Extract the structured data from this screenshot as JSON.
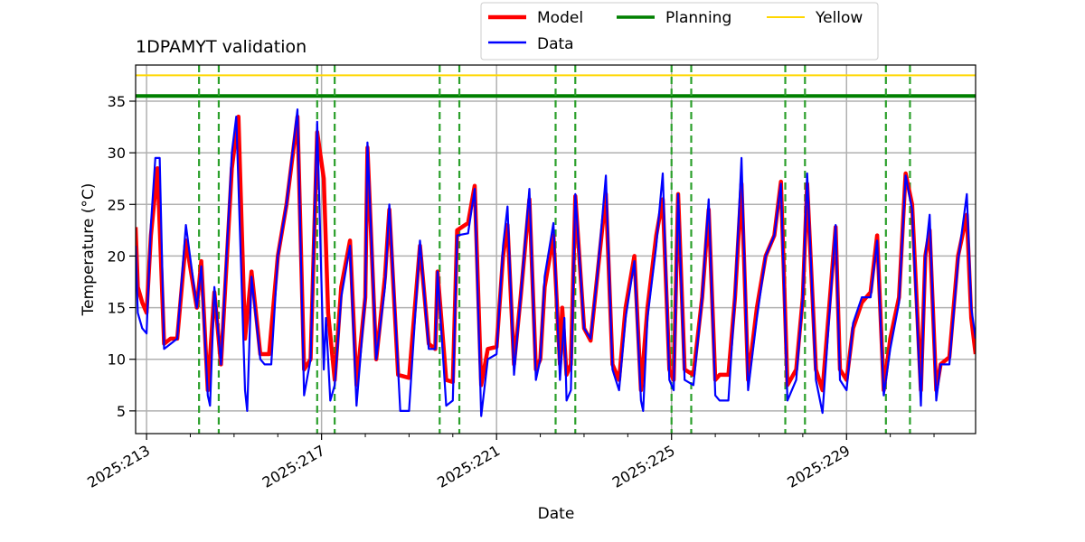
{
  "chart_data": {
    "type": "line",
    "title": "1DPAMYT validation",
    "xlabel": "Date",
    "ylabel": "Temperature ($^\\circ$C)",
    "ylabel_display": "Temperature (°C)",
    "xlim": [
      212.75,
      231.95
    ],
    "ylim": [
      2.8,
      38.5
    ],
    "x_ticks": [
      {
        "value": 213,
        "label": "2025:213"
      },
      {
        "value": 217,
        "label": "2025:217"
      },
      {
        "value": 221,
        "label": "2025:221"
      },
      {
        "value": 225,
        "label": "2025:225"
      },
      {
        "value": 229,
        "label": "2025:229"
      }
    ],
    "y_ticks": [
      5,
      10,
      15,
      20,
      25,
      30,
      35
    ],
    "grid": true,
    "legend_placement": "top-center",
    "legend": [
      {
        "label": "Model",
        "color": "#ff0000"
      },
      {
        "label": "Planning",
        "color": "#008000"
      },
      {
        "label": "Yellow",
        "color": "#ffd700"
      },
      {
        "label": "Data",
        "color": "#0000ff"
      }
    ],
    "planning_limit": 35.5,
    "yellow_limit": 37.5,
    "vertical_markers": [
      214.2,
      214.65,
      216.9,
      217.3,
      219.7,
      220.15,
      222.35,
      222.8,
      225.0,
      225.45,
      227.6,
      228.05,
      229.9,
      230.45
    ],
    "series": [
      {
        "name": "Model",
        "color": "#ff0000",
        "points": [
          [
            212.75,
            22.8
          ],
          [
            212.8,
            17
          ],
          [
            212.9,
            15.5
          ],
          [
            213.0,
            14.5
          ],
          [
            213.1,
            22
          ],
          [
            213.25,
            28.5
          ],
          [
            213.4,
            11.5
          ],
          [
            213.55,
            12
          ],
          [
            213.7,
            12
          ],
          [
            213.9,
            21.5
          ],
          [
            214.15,
            15
          ],
          [
            214.25,
            19.5
          ],
          [
            214.4,
            7
          ],
          [
            214.55,
            16.5
          ],
          [
            214.7,
            9.5
          ],
          [
            214.95,
            28.5
          ],
          [
            215.1,
            33.5
          ],
          [
            215.25,
            12
          ],
          [
            215.4,
            18.5
          ],
          [
            215.6,
            10.5
          ],
          [
            215.8,
            10.5
          ],
          [
            216.0,
            20
          ],
          [
            216.2,
            25
          ],
          [
            216.45,
            33.5
          ],
          [
            216.6,
            9
          ],
          [
            216.75,
            10
          ],
          [
            216.9,
            32
          ],
          [
            217.05,
            27.5
          ],
          [
            217.15,
            14.5
          ],
          [
            217.3,
            8
          ],
          [
            217.45,
            17
          ],
          [
            217.65,
            21.5
          ],
          [
            217.8,
            7.5
          ],
          [
            218.0,
            16
          ],
          [
            218.05,
            30.5
          ],
          [
            218.25,
            10
          ],
          [
            218.45,
            18
          ],
          [
            218.55,
            24.5
          ],
          [
            218.75,
            8.5
          ],
          [
            219.0,
            8.2
          ],
          [
            219.25,
            21
          ],
          [
            219.45,
            11.5
          ],
          [
            219.6,
            11
          ],
          [
            219.65,
            18.5
          ],
          [
            219.85,
            8
          ],
          [
            220.0,
            7.8
          ],
          [
            220.1,
            22.5
          ],
          [
            220.35,
            23.2
          ],
          [
            220.5,
            26.8
          ],
          [
            220.65,
            7.5
          ],
          [
            220.8,
            11
          ],
          [
            221.0,
            11.2
          ],
          [
            221.15,
            20
          ],
          [
            221.25,
            23
          ],
          [
            221.4,
            9.5
          ],
          [
            221.55,
            16
          ],
          [
            221.75,
            25.5
          ],
          [
            221.9,
            9
          ],
          [
            222.0,
            10
          ],
          [
            222.1,
            17
          ],
          [
            222.3,
            22
          ],
          [
            222.45,
            9.5
          ],
          [
            222.5,
            15
          ],
          [
            222.6,
            8.5
          ],
          [
            222.7,
            9.5
          ],
          [
            222.8,
            25.8
          ],
          [
            223.0,
            13
          ],
          [
            223.15,
            11.8
          ],
          [
            223.3,
            18
          ],
          [
            223.5,
            26
          ],
          [
            223.65,
            9.5
          ],
          [
            223.8,
            8
          ],
          [
            223.95,
            15
          ],
          [
            224.15,
            20
          ],
          [
            224.3,
            7
          ],
          [
            224.45,
            15
          ],
          [
            224.65,
            22
          ],
          [
            224.8,
            25.5
          ],
          [
            224.95,
            9
          ],
          [
            225.05,
            8
          ],
          [
            225.15,
            26
          ],
          [
            225.3,
            9
          ],
          [
            225.5,
            8.5
          ],
          [
            225.7,
            16
          ],
          [
            225.85,
            24.5
          ],
          [
            226.0,
            8
          ],
          [
            226.1,
            8.5
          ],
          [
            226.3,
            8.5
          ],
          [
            226.45,
            16
          ],
          [
            226.6,
            27
          ],
          [
            226.75,
            8
          ],
          [
            226.95,
            15
          ],
          [
            227.15,
            20
          ],
          [
            227.35,
            22
          ],
          [
            227.5,
            27.2
          ],
          [
            227.65,
            7.5
          ],
          [
            227.85,
            9
          ],
          [
            228.0,
            16
          ],
          [
            228.1,
            27
          ],
          [
            228.3,
            9
          ],
          [
            228.45,
            7
          ],
          [
            228.75,
            22.8
          ],
          [
            228.85,
            9
          ],
          [
            229.0,
            8
          ],
          [
            229.15,
            13
          ],
          [
            229.35,
            15.5
          ],
          [
            229.55,
            16.5
          ],
          [
            229.7,
            22
          ],
          [
            229.85,
            7
          ],
          [
            230.0,
            12
          ],
          [
            230.2,
            16
          ],
          [
            230.35,
            28
          ],
          [
            230.5,
            25
          ],
          [
            230.7,
            7
          ],
          [
            230.8,
            20
          ],
          [
            230.9,
            22.5
          ],
          [
            231.05,
            7
          ],
          [
            231.15,
            9.5
          ],
          [
            231.35,
            10.2
          ],
          [
            231.55,
            20
          ],
          [
            231.75,
            24
          ],
          [
            231.85,
            14
          ],
          [
            231.95,
            10.5
          ]
        ]
      },
      {
        "name": "Data",
        "color": "#0000ff",
        "points": [
          [
            212.75,
            21
          ],
          [
            212.8,
            14.5
          ],
          [
            212.9,
            13
          ],
          [
            213.0,
            12.5
          ],
          [
            213.1,
            23
          ],
          [
            213.2,
            29.5
          ],
          [
            213.3,
            29.5
          ],
          [
            213.4,
            11
          ],
          [
            213.55,
            11.5
          ],
          [
            213.7,
            12
          ],
          [
            213.9,
            23
          ],
          [
            214.15,
            15
          ],
          [
            214.25,
            19
          ],
          [
            214.4,
            6.5
          ],
          [
            214.45,
            5.5
          ],
          [
            214.55,
            17
          ],
          [
            214.7,
            9.5
          ],
          [
            214.95,
            30
          ],
          [
            215.05,
            33.5
          ],
          [
            215.25,
            7
          ],
          [
            215.3,
            5
          ],
          [
            215.4,
            18
          ],
          [
            215.6,
            10
          ],
          [
            215.7,
            9.5
          ],
          [
            215.85,
            9.5
          ],
          [
            216.0,
            20
          ],
          [
            216.2,
            25
          ],
          [
            216.45,
            34.2
          ],
          [
            216.6,
            6.5
          ],
          [
            216.75,
            10
          ],
          [
            216.9,
            33
          ],
          [
            217.05,
            9
          ],
          [
            217.1,
            14
          ],
          [
            217.2,
            6
          ],
          [
            217.3,
            7.5
          ],
          [
            217.45,
            16
          ],
          [
            217.65,
            21
          ],
          [
            217.8,
            5.5
          ],
          [
            218.0,
            16
          ],
          [
            218.05,
            31
          ],
          [
            218.25,
            10
          ],
          [
            218.45,
            17
          ],
          [
            218.55,
            25
          ],
          [
            218.8,
            5
          ],
          [
            219.0,
            5
          ],
          [
            219.25,
            21.5
          ],
          [
            219.45,
            11
          ],
          [
            219.6,
            11
          ],
          [
            219.65,
            18.5
          ],
          [
            219.85,
            5.5
          ],
          [
            220.0,
            6
          ],
          [
            220.1,
            22
          ],
          [
            220.35,
            22.2
          ],
          [
            220.5,
            26.5
          ],
          [
            220.65,
            4.5
          ],
          [
            220.8,
            10
          ],
          [
            221.0,
            10.5
          ],
          [
            221.15,
            21
          ],
          [
            221.25,
            24.8
          ],
          [
            221.4,
            8.5
          ],
          [
            221.55,
            16
          ],
          [
            221.75,
            26.5
          ],
          [
            221.9,
            8
          ],
          [
            222.0,
            10
          ],
          [
            222.1,
            18
          ],
          [
            222.3,
            23.2
          ],
          [
            222.45,
            8
          ],
          [
            222.55,
            14
          ],
          [
            222.6,
            6
          ],
          [
            222.7,
            7
          ],
          [
            222.8,
            26
          ],
          [
            223.0,
            13
          ],
          [
            223.15,
            12
          ],
          [
            223.3,
            18
          ],
          [
            223.5,
            27.8
          ],
          [
            223.65,
            9
          ],
          [
            223.8,
            7
          ],
          [
            223.95,
            14
          ],
          [
            224.15,
            19.5
          ],
          [
            224.3,
            6
          ],
          [
            224.35,
            5
          ],
          [
            224.45,
            14
          ],
          [
            224.65,
            21
          ],
          [
            224.8,
            28
          ],
          [
            224.95,
            8
          ],
          [
            225.05,
            7
          ],
          [
            225.15,
            26
          ],
          [
            225.3,
            8
          ],
          [
            225.5,
            7.5
          ],
          [
            225.7,
            16
          ],
          [
            225.85,
            25.5
          ],
          [
            226.0,
            6.5
          ],
          [
            226.1,
            6
          ],
          [
            226.3,
            6
          ],
          [
            226.45,
            16
          ],
          [
            226.6,
            29.5
          ],
          [
            226.75,
            7
          ],
          [
            226.95,
            14
          ],
          [
            227.15,
            20
          ],
          [
            227.35,
            22
          ],
          [
            227.5,
            27
          ],
          [
            227.65,
            6
          ],
          [
            227.85,
            8
          ],
          [
            228.0,
            16
          ],
          [
            228.1,
            28
          ],
          [
            228.3,
            8
          ],
          [
            228.45,
            4.8
          ],
          [
            228.75,
            23
          ],
          [
            228.85,
            8
          ],
          [
            229.0,
            7
          ],
          [
            229.15,
            13.5
          ],
          [
            229.35,
            16
          ],
          [
            229.55,
            16
          ],
          [
            229.7,
            21.5
          ],
          [
            229.85,
            6.5
          ],
          [
            230.0,
            11
          ],
          [
            230.2,
            15.5
          ],
          [
            230.35,
            27.8
          ],
          [
            230.5,
            24.5
          ],
          [
            230.7,
            5.5
          ],
          [
            230.8,
            20
          ],
          [
            230.9,
            24
          ],
          [
            231.05,
            6
          ],
          [
            231.15,
            9.5
          ],
          [
            231.35,
            9.5
          ],
          [
            231.55,
            19.5
          ],
          [
            231.75,
            26
          ],
          [
            231.85,
            15
          ],
          [
            231.95,
            12
          ]
        ]
      }
    ]
  }
}
